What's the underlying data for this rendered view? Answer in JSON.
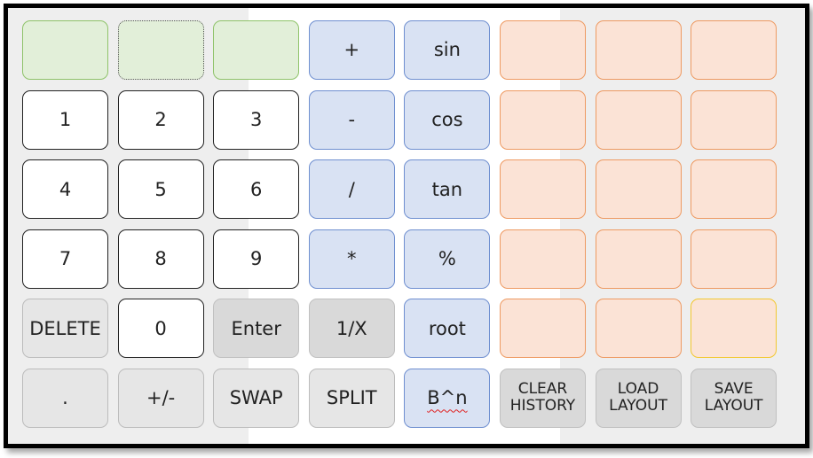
{
  "keys": {
    "plus": "+",
    "sin": "sin",
    "one": "1",
    "two": "2",
    "three": "3",
    "minus": "-",
    "cos": "cos",
    "four": "4",
    "five": "5",
    "six": "6",
    "divide": "/",
    "tan": "tan",
    "seven": "7",
    "eight": "8",
    "nine": "9",
    "multiply": "*",
    "percent": "%",
    "delete": "DELETE",
    "zero": "0",
    "enter": "Enter",
    "reciprocal": "1/X",
    "root": "root",
    "decimal": ".",
    "negate": "+/-",
    "swap": "SWAP",
    "split": "SPLIT",
    "power": "B^n",
    "clear_history_line1": "CLEAR",
    "clear_history_line2": "HISTORY",
    "load_layout_line1": "LOAD",
    "load_layout_line2": "LAYOUT",
    "save_layout_line1": "SAVE",
    "save_layout_line2": "LAYOUT"
  },
  "colors": {
    "green": "#e2efd9",
    "blue": "#d9e2f3",
    "orange": "#fbe3d6",
    "gray": "#e6e6e6",
    "white": "#ffffff"
  }
}
